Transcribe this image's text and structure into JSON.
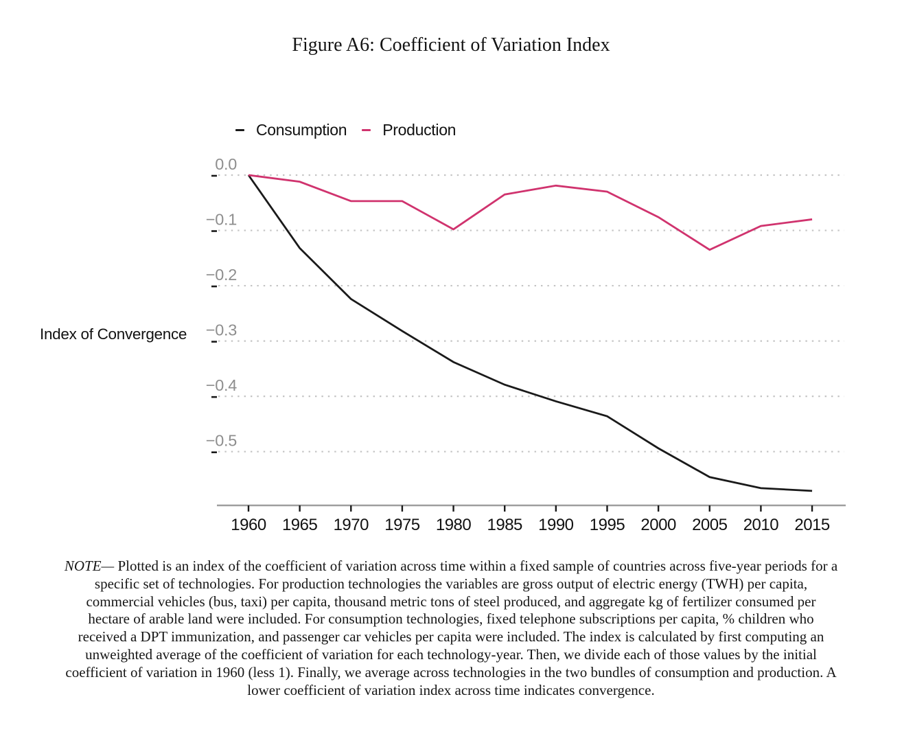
{
  "figure": {
    "title": "Figure A6: Coefficient of Variation Index"
  },
  "chart_data": {
    "type": "line",
    "title": "Figure A6: Coefficient of Variation Index",
    "xlabel": "",
    "ylabel": "Index of Convergence",
    "x": [
      1960,
      1965,
      1970,
      1975,
      1980,
      1985,
      1990,
      1995,
      2000,
      2005,
      2010,
      2015
    ],
    "x_tick_labels": [
      "1960",
      "1965",
      "1970",
      "1975",
      "1980",
      "1985",
      "1990",
      "1995",
      "2000",
      "2005",
      "2010",
      "2015"
    ],
    "y_ticks": [
      {
        "label": "0.0",
        "value": 0.0
      },
      {
        "label": "−0.1",
        "value": -0.1
      },
      {
        "label": "−0.2",
        "value": -0.2
      },
      {
        "label": "−0.3",
        "value": -0.3
      },
      {
        "label": "−0.4",
        "value": -0.4
      },
      {
        "label": "−0.5",
        "value": -0.5
      }
    ],
    "ylim": [
      -0.6,
      0.02
    ],
    "grid": "horizontal-dotted",
    "legend_position": "top-left",
    "series": [
      {
        "name": "Consumption",
        "color": "#1a1a1a",
        "values": [
          0.0,
          -0.132,
          -0.224,
          -0.282,
          -0.338,
          -0.379,
          -0.409,
          -0.436,
          -0.494,
          -0.546,
          -0.566,
          -0.571
        ]
      },
      {
        "name": "Production",
        "color": "#d0336e",
        "values": [
          0.0,
          -0.012,
          -0.047,
          -0.047,
          -0.098,
          -0.035,
          -0.019,
          -0.03,
          -0.076,
          -0.135,
          -0.092,
          -0.08
        ]
      }
    ],
    "colors": {
      "grid": "#c4c4c4",
      "axis_line": "#9e9e9e",
      "tick_mark": "#1a1a1a",
      "tick_label_y": "#8e8e8e",
      "tick_label_x": "#111111"
    }
  },
  "note": {
    "prefix": "NOTE—",
    "lines": [
      " Plotted is an index of the coefficient of variation across time within a fixed sample of countries across five-year periods for a",
      "specific set of technologies. For production technologies the variables are gross output of electric energy (TWH) per capita,",
      "commercial vehicles (bus, taxi) per capita, thousand metric tons of steel produced, and aggregate kg of fertilizer consumed per",
      "hectare of arable land were included. For consumption technologies, fixed telephone subscriptions per capita, % children who",
      "received a DPT immunization, and passenger car vehicles per capita were included. The index is calculated by first computing an",
      "unweighted average of the coefficient of variation for each technology-year. Then, we divide each of those values by the initial",
      "coefficient of variation in 1960 (less 1). Finally, we average across technologies in the two bundles of consumption and production. A",
      "lower coefficient of variation index across time indicates convergence."
    ]
  }
}
